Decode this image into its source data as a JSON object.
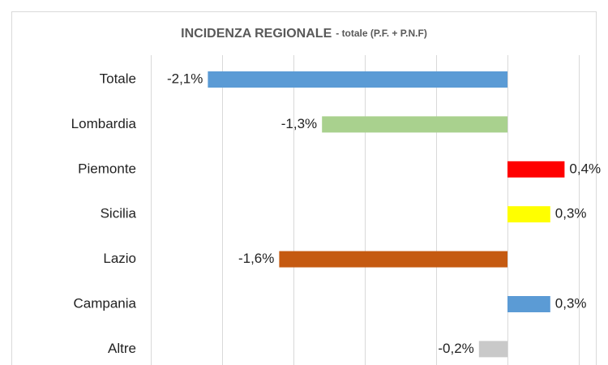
{
  "chart_data": {
    "type": "hbar",
    "title": "INCIDENZA REGIONALE",
    "subtitle": "- totale (P.F. + P.N.F)",
    "categories": [
      "Totale",
      "Lombardia",
      "Piemonte",
      "Sicilia",
      "Lazio",
      "Campania",
      "Altre"
    ],
    "values": [
      -2.1,
      -1.3,
      0.4,
      0.3,
      -1.6,
      0.3,
      -0.2
    ],
    "value_labels": [
      "-2,1%",
      "-1,3%",
      "0,4%",
      "0,3%",
      "-1,6%",
      "0,3%",
      "-0,2%"
    ],
    "colors": [
      "#5b9bd5",
      "#a9d18e",
      "#ff0000",
      "#ffff00",
      "#c55a11",
      "#5b9bd5",
      "#c9c9c9"
    ],
    "xlim": [
      -2.5,
      0.5
    ],
    "xticks": [
      -2.5,
      -2,
      -1.5,
      -1,
      -0.5,
      0,
      0.5
    ],
    "grid": true
  }
}
